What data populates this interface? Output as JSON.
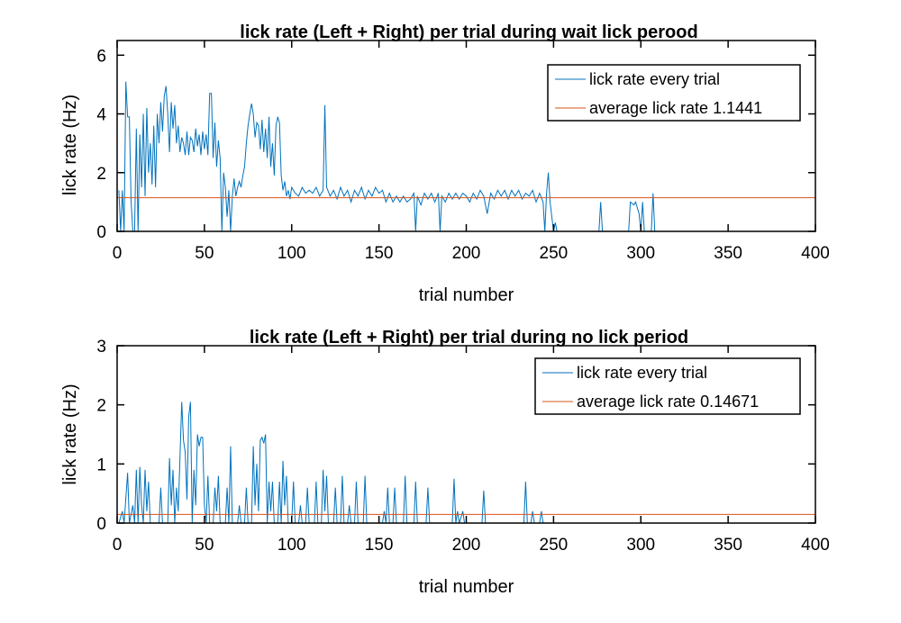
{
  "chart_data": [
    {
      "type": "line",
      "title": "lick rate (Left + Right) per trial during wait lick perood",
      "x_label": "trial number",
      "y_label": "lick rate (Hz)",
      "xlim": [
        0,
        400
      ],
      "xticks": [
        0,
        50,
        100,
        150,
        200,
        250,
        300,
        350,
        400
      ],
      "ylim": [
        0,
        6.5
      ],
      "yticks": [
        0,
        2,
        4,
        6
      ],
      "legend": "upper right",
      "series": [
        {
          "name": "lick rate every trial",
          "color": "#0072bd",
          "x": [
            1,
            2,
            3,
            4,
            5,
            6,
            7,
            8,
            9,
            10,
            11,
            12,
            13,
            14,
            15,
            16,
            17,
            18,
            19,
            20,
            21,
            22,
            23,
            24,
            25,
            26,
            27,
            28,
            29,
            30,
            31,
            32,
            33,
            34,
            35,
            36,
            37,
            38,
            39,
            40,
            41,
            42,
            43,
            44,
            45,
            46,
            47,
            48,
            49,
            50,
            51,
            52,
            53,
            54,
            55,
            56,
            57,
            58,
            59,
            60,
            61,
            62,
            63,
            64,
            65,
            66,
            67,
            68,
            69,
            70,
            71,
            72,
            73,
            74,
            75,
            76,
            77,
            78,
            79,
            80,
            81,
            82,
            83,
            84,
            85,
            86,
            87,
            88,
            89,
            90,
            91,
            92,
            93,
            94,
            95,
            96,
            97,
            98,
            99,
            100,
            102,
            104,
            106,
            108,
            110,
            112,
            114,
            116,
            118,
            119,
            120,
            122,
            124,
            126,
            128,
            130,
            132,
            134,
            136,
            138,
            140,
            142,
            144,
            146,
            148,
            150,
            152,
            154,
            156,
            158,
            160,
            162,
            164,
            166,
            168,
            170,
            171,
            172,
            174,
            176,
            178,
            180,
            182,
            184,
            185,
            186,
            188,
            190,
            192,
            194,
            196,
            198,
            200,
            202,
            204,
            206,
            208,
            210,
            212,
            214,
            216,
            218,
            220,
            222,
            224,
            226,
            228,
            230,
            232,
            234,
            236,
            238,
            240,
            242,
            244,
            245,
            246,
            247,
            248,
            250,
            251,
            252,
            276,
            277,
            278,
            293,
            294,
            296,
            297,
            299,
            300,
            301,
            302,
            306,
            307,
            308,
            400
          ],
          "values": [
            1.4,
            0,
            1.4,
            0,
            5.1,
            3.9,
            3.9,
            1.0,
            0,
            0,
            3.5,
            0,
            3.3,
            1.5,
            4.0,
            1.2,
            4.2,
            2.0,
            3.0,
            1.6,
            3.6,
            1.5,
            4.0,
            3.0,
            4.4,
            3.4,
            4.6,
            4.95,
            4.0,
            2.7,
            4.4,
            3.5,
            4.3,
            3.0,
            3.6,
            2.7,
            3.2,
            3.0,
            2.6,
            3.4,
            2.6,
            3.2,
            3.1,
            2.7,
            3.5,
            2.9,
            3.3,
            2.6,
            3.4,
            2.8,
            3.3,
            2.6,
            4.7,
            4.7,
            2.5,
            3.7,
            2.2,
            3.1,
            2.5,
            0,
            2.0,
            1.5,
            0.5,
            1.4,
            0,
            1.2,
            1.8,
            1.2,
            1.5,
            1.7,
            1.5,
            1.9,
            2.2,
            3.0,
            3.6,
            4.0,
            4.35,
            4.0,
            3.2,
            3.7,
            3.6,
            2.8,
            3.8,
            2.7,
            3.5,
            2.5,
            3.9,
            2.2,
            3.0,
            1.9,
            3.6,
            3.9,
            3.7,
            1.9,
            1.4,
            1.7,
            1.2,
            1.4,
            1.1,
            1.5,
            1.3,
            1.2,
            1.5,
            1.3,
            1.4,
            1.3,
            1.5,
            1.2,
            1.4,
            4.3,
            1.5,
            1.2,
            1.4,
            1.1,
            1.5,
            1.2,
            1.4,
            1.0,
            1.4,
            1.2,
            1.5,
            1.1,
            1.4,
            1.2,
            1.5,
            1.3,
            1.4,
            1.0,
            1.3,
            1.0,
            1.2,
            1.0,
            1.2,
            1.0,
            1.1,
            1.3,
            0,
            1.2,
            0.9,
            1.3,
            1.1,
            1.3,
            1.0,
            1.3,
            0,
            1.2,
            1.0,
            1.3,
            1.1,
            1.3,
            1.1,
            1.3,
            1.2,
            1.0,
            1.3,
            1.1,
            1.4,
            1.2,
            0.6,
            1.3,
            1.1,
            1.4,
            1.2,
            1.4,
            1.1,
            1.4,
            1.2,
            1.4,
            1.1,
            1.3,
            1.2,
            1.4,
            1.0,
            1.3,
            1.0,
            0,
            1.3,
            2.0,
            1.0,
            0,
            0.3,
            0,
            0,
            1.0,
            0,
            0,
            1.0,
            0.9,
            1.0,
            0.6,
            0,
            1.0,
            0,
            0,
            1.3,
            0,
            0
          ]
        },
        {
          "name": "average lick rate 1.1441",
          "color": "#d95319",
          "x": [
            0,
            400
          ],
          "values": [
            1.1441,
            1.1441
          ]
        }
      ]
    },
    {
      "type": "line",
      "title": "lick rate (Left + Right) per trial during no lick period",
      "x_label": "trial number",
      "y_label": "lick rate (Hz)",
      "xlim": [
        0,
        400
      ],
      "xticks": [
        0,
        50,
        100,
        150,
        200,
        250,
        300,
        350,
        400
      ],
      "ylim": [
        0,
        3
      ],
      "yticks": [
        0,
        1,
        2,
        3
      ],
      "legend": "upper right",
      "series": [
        {
          "name": "lick rate every trial",
          "color": "#0072bd",
          "x": [
            1,
            3,
            4,
            6,
            7,
            9,
            10,
            11,
            12,
            13,
            14,
            15,
            16,
            17,
            18,
            19,
            24,
            25,
            26,
            29,
            30,
            31,
            32,
            33,
            34,
            35,
            36,
            37,
            38,
            39,
            40,
            41,
            42,
            43,
            44,
            45,
            46,
            47,
            48,
            49,
            50,
            51,
            52,
            53,
            55,
            56,
            57,
            58,
            59,
            62,
            63,
            64,
            65,
            66,
            69,
            70,
            71,
            73,
            74,
            75,
            77,
            78,
            79,
            80,
            81,
            82,
            83,
            84,
            85,
            86,
            87,
            88,
            89,
            90,
            92,
            93,
            94,
            95,
            96,
            97,
            98,
            100,
            101,
            102,
            104,
            105,
            106,
            108,
            109,
            110,
            113,
            114,
            115,
            117,
            118,
            119,
            120,
            121,
            124,
            125,
            126,
            128,
            129,
            130,
            132,
            133,
            134,
            136,
            137,
            138,
            141,
            142,
            143,
            152,
            153,
            154,
            155,
            156,
            158,
            159,
            160,
            164,
            165,
            166,
            170,
            171,
            172,
            177,
            178,
            179,
            192,
            193,
            194,
            195,
            196,
            198,
            199,
            209,
            210,
            211,
            233,
            234,
            235,
            237,
            238,
            239,
            242,
            243,
            244,
            400
          ],
          "values": [
            0,
            0.2,
            0,
            0.85,
            0,
            0.3,
            0,
            0.9,
            0,
            0.95,
            0.3,
            0,
            0.9,
            0.2,
            0.7,
            0,
            0,
            0.6,
            0,
            0,
            1.1,
            0.3,
            0.9,
            0,
            0.6,
            0.2,
            1.1,
            2.05,
            1.4,
            1.2,
            0.4,
            1.8,
            2.05,
            0,
            0.9,
            0.3,
            1.5,
            1.3,
            1.45,
            1.45,
            0.3,
            0,
            0.8,
            0,
            0,
            0.6,
            0.2,
            0.8,
            0,
            0,
            0.6,
            0,
            1.3,
            0,
            0,
            0.3,
            0,
            0,
            0.6,
            0,
            0,
            1.3,
            0.3,
            1.0,
            0.2,
            1.4,
            1.45,
            1.35,
            1.5,
            0,
            0.7,
            0.2,
            0.7,
            0,
            0,
            0.7,
            0,
            1.05,
            0.3,
            0.8,
            0,
            0,
            0.7,
            0,
            0,
            0.3,
            0,
            0,
            0.6,
            0,
            0,
            0.7,
            0,
            0,
            0.9,
            0.2,
            0.8,
            0,
            0,
            0.6,
            0,
            0,
            0.8,
            0,
            0,
            0.3,
            0,
            0,
            0.7,
            0,
            0,
            0.8,
            0,
            0,
            0.2,
            0,
            0.6,
            0,
            0,
            0.6,
            0,
            0,
            0.8,
            0,
            0,
            0.7,
            0,
            0,
            0.6,
            0,
            0,
            0.75,
            0,
            0.2,
            0,
            0.2,
            0,
            0,
            0.55,
            0,
            0,
            0.7,
            0,
            0,
            0.2,
            0,
            0,
            0.2,
            0,
            0
          ]
        },
        {
          "name": "average lick rate 0.14671",
          "color": "#d95319",
          "x": [
            0,
            400
          ],
          "values": [
            0.14671,
            0.14671
          ]
        }
      ]
    }
  ]
}
